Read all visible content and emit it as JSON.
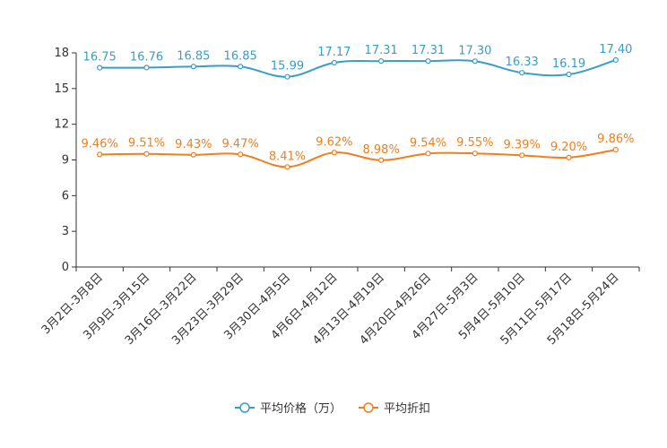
{
  "chart_data": {
    "type": "line",
    "title": "",
    "xlabel": "",
    "ylabel": "",
    "categories": [
      "3月2日-3月8日",
      "3月9日-3月15日",
      "3月16日-3月22日",
      "3月23日-3月29日",
      "3月30日-4月5日",
      "4月6日-4月12日",
      "4月13日-4月19日",
      "4月20日-4月26日",
      "4月27日-5月3日",
      "5月4日-5月10日",
      "5月11日-5月17日",
      "5月18日-5月24日"
    ],
    "ylim": [
      0,
      18
    ],
    "yticks": [
      0,
      3,
      6,
      9,
      12,
      15,
      18
    ],
    "grid": false,
    "legend_position": "bottom-center",
    "series": [
      {
        "name": "平均价格（万）",
        "color": "#3a9dc7",
        "values": [
          16.75,
          16.76,
          16.85,
          16.85,
          15.99,
          17.17,
          17.31,
          17.31,
          17.3,
          16.33,
          16.19,
          17.4
        ],
        "labels": [
          "16.75",
          "16.76",
          "16.85",
          "16.85",
          "15.99",
          "17.17",
          "17.31",
          "17.31",
          "17.30",
          "16.33",
          "16.19",
          "17.40"
        ]
      },
      {
        "name": "平均折扣",
        "color": "#f07f1e",
        "values": [
          9.46,
          9.51,
          9.43,
          9.47,
          8.41,
          9.62,
          8.98,
          9.54,
          9.55,
          9.39,
          9.2,
          9.86
        ],
        "labels": [
          "9.46%",
          "9.51%",
          "9.43%",
          "9.47%",
          "8.41%",
          "9.62%",
          "8.98%",
          "9.54%",
          "9.55%",
          "9.39%",
          "9.20%",
          "9.86%"
        ]
      }
    ]
  }
}
